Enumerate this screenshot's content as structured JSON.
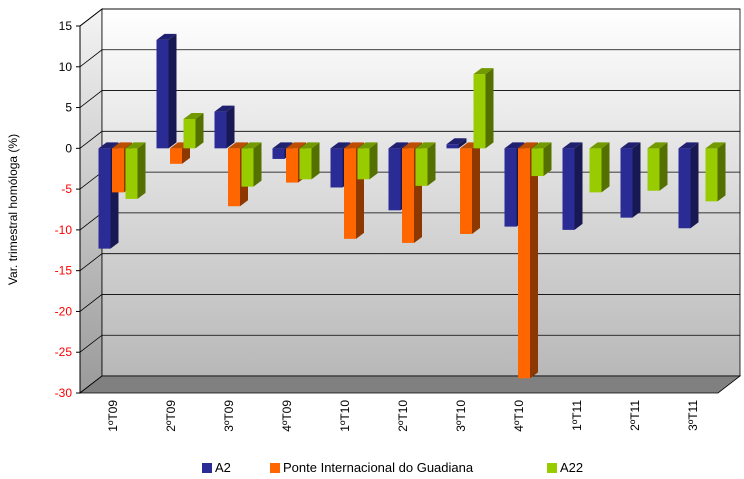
{
  "chart_data": {
    "type": "bar",
    "title": "",
    "xlabel": "",
    "ylabel": "Var. trimestral homóloga (%)",
    "ylim": [
      -30,
      15
    ],
    "yticks": [
      15,
      10,
      5,
      0,
      -5,
      -10,
      -15,
      -20,
      -25,
      -30
    ],
    "grid": true,
    "legend_position": "bottom",
    "categories": [
      "1ºT09",
      "2ºT09",
      "3ºT09",
      "4ºT09",
      "1ºT10",
      "2ºT10",
      "3ºT10",
      "4ºT10",
      "1ºT11",
      "2ºT11",
      "3ºT11"
    ],
    "series": [
      {
        "name": "A2",
        "color": "#2b2b96",
        "values": [
          -12.3,
          13.3,
          4.5,
          -1.3,
          -4.8,
          -7.6,
          0.5,
          -9.6,
          -10,
          -8.5,
          -9.8
        ]
      },
      {
        "name": "Ponte Internacional do Guadiana",
        "color": "#ff6600",
        "values": [
          -5.4,
          -1.9,
          -7.1,
          -4.2,
          -11.1,
          -11.6,
          -10.5,
          -28.2,
          null,
          null,
          null
        ]
      },
      {
        "name": "A22",
        "color": "#99cc00",
        "values": [
          -6.2,
          3.6,
          -4.7,
          -3.8,
          -3.8,
          -4.6,
          9.1,
          -3.4,
          -5.4,
          -5.2,
          -6.5
        ]
      }
    ],
    "colors": {
      "tick_negative": "#ff0000",
      "tick_positive": "#000000",
      "floor": "#808080"
    }
  }
}
